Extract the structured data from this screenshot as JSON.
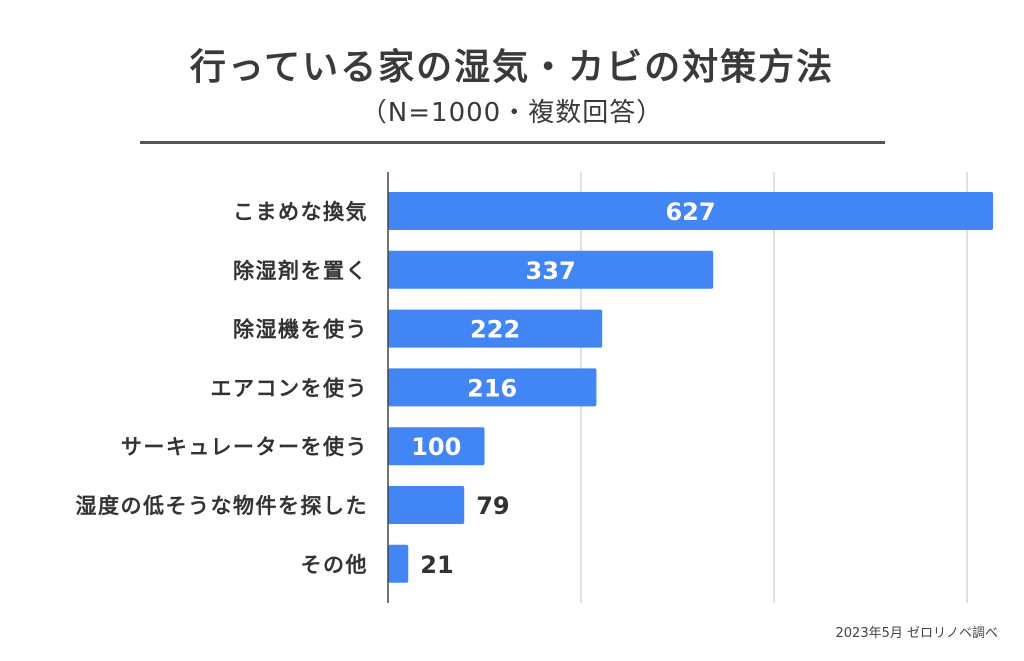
{
  "chart_data": {
    "type": "bar",
    "orientation": "horizontal",
    "title": "行っている家の湿気・カビの対策方法",
    "subtitle": "（N=1000・複数回答）",
    "categories": [
      "こまめな換気",
      "除湿剤を置く",
      "除湿機を使う",
      "エアコンを使う",
      "サーキュレーターを使う",
      "湿度の低そうな物件を探した",
      "その他"
    ],
    "values": [
      627,
      337,
      222,
      216,
      100,
      79,
      21
    ],
    "value_labels": [
      "627",
      "337",
      "222",
      "216",
      "100",
      "79",
      "21"
    ],
    "xlim": [
      0,
      600
    ],
    "gridlines": [
      0,
      200,
      400,
      600
    ],
    "grid": true,
    "bar_color": "#4285f4",
    "label_inside_color": "#ffffff",
    "label_outside_color": "#333333",
    "source": "2023年5月 ゼロリノベ調べ"
  }
}
